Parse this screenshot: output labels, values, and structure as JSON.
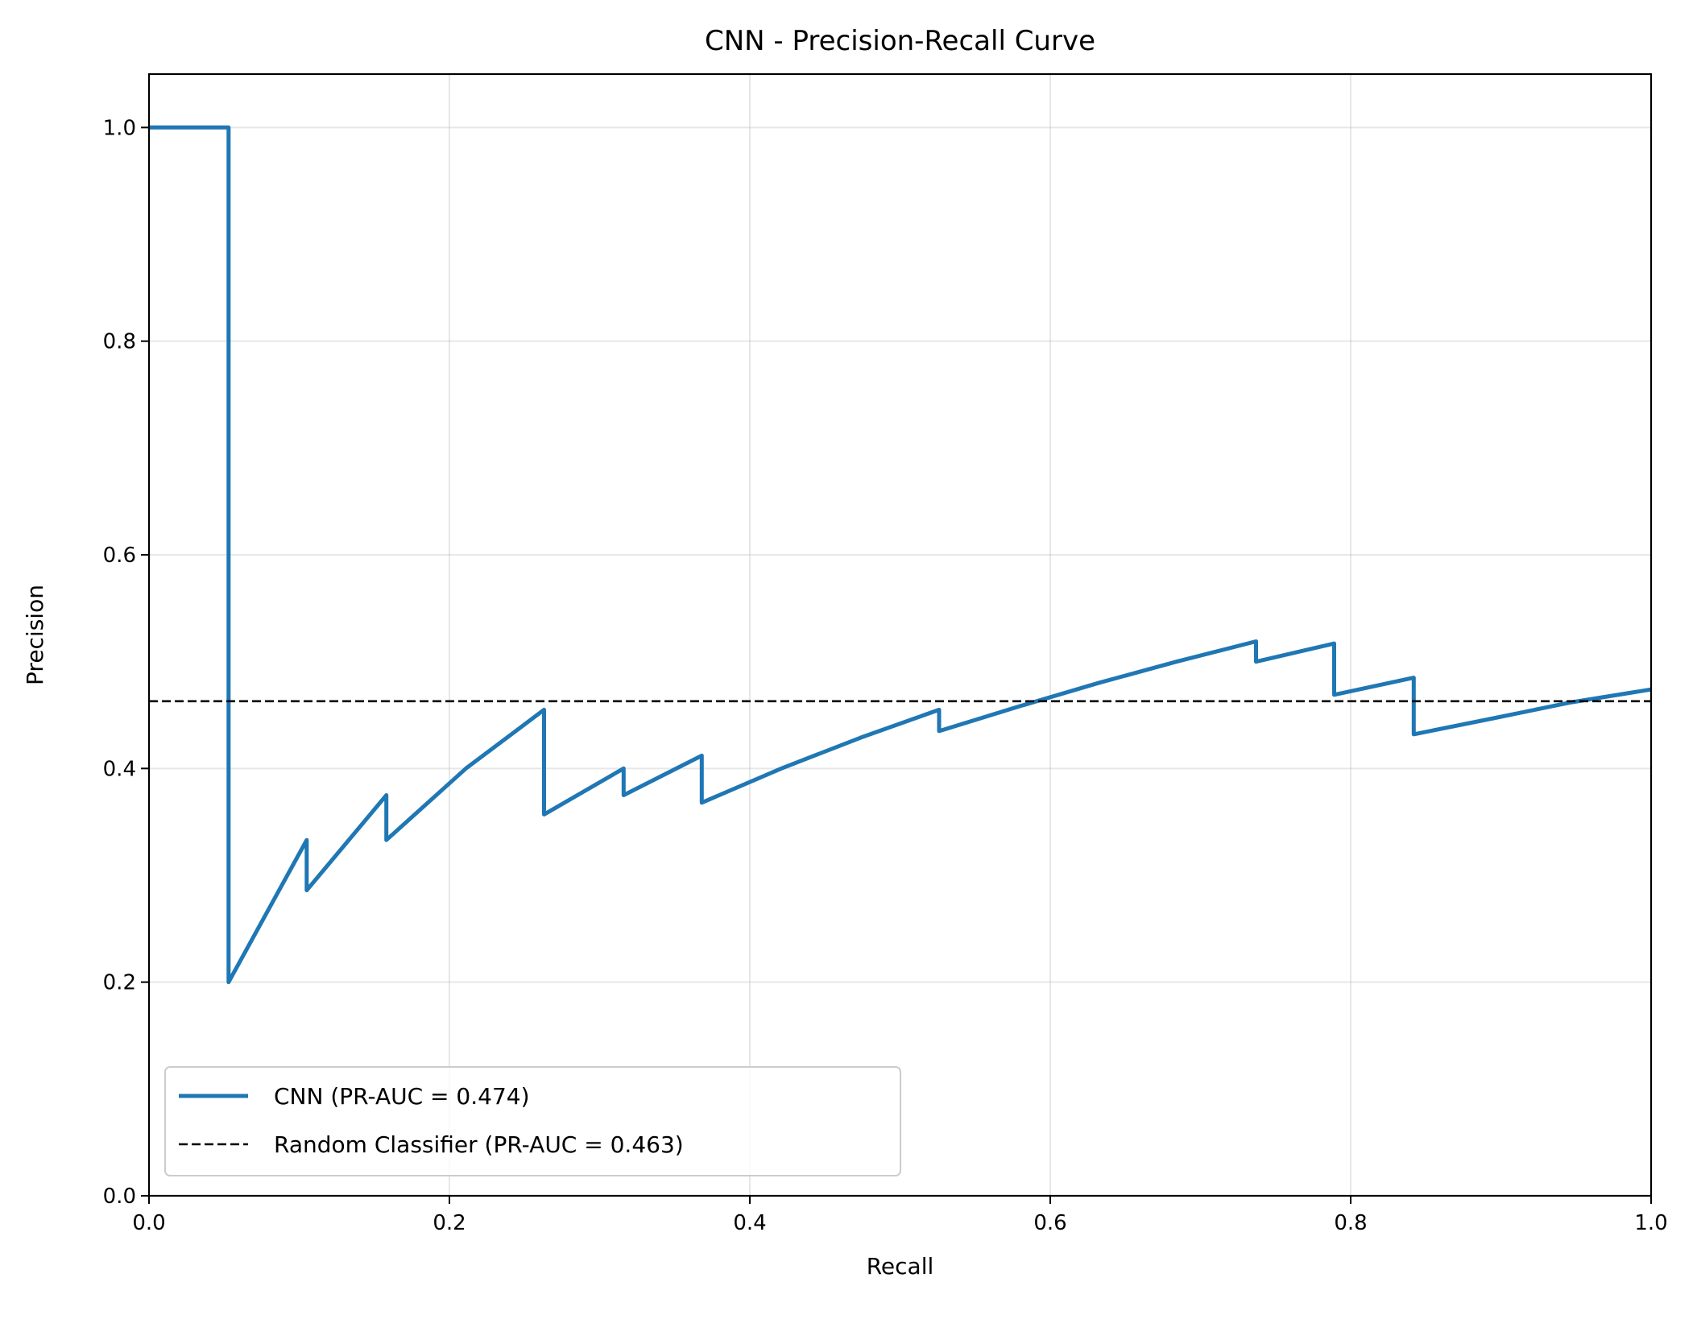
{
  "chart_data": {
    "type": "line",
    "title": "CNN - Precision-Recall Curve",
    "xlabel": "Recall",
    "ylabel": "Precision",
    "xlim": [
      0.0,
      1.0
    ],
    "ylim": [
      0.0,
      1.05
    ],
    "xticks": [
      "0.0",
      "0.2",
      "0.4",
      "0.6",
      "0.8",
      "1.0"
    ],
    "yticks": [
      "0.0",
      "0.2",
      "0.4",
      "0.6",
      "0.8",
      "1.0"
    ],
    "grid": true,
    "legend_position": "lower-left",
    "series": [
      {
        "name": "CNN (PR-AUC = 0.474)",
        "color": "#1f77b4",
        "style": "solid",
        "x": [
          0.0,
          0.053,
          0.053,
          0.105,
          0.105,
          0.158,
          0.158,
          0.211,
          0.263,
          0.263,
          0.316,
          0.316,
          0.368,
          0.368,
          0.421,
          0.474,
          0.526,
          0.526,
          0.579,
          0.632,
          0.684,
          0.737,
          0.737,
          0.789,
          0.789,
          0.842,
          0.842,
          0.895,
          0.947,
          1.0
        ],
        "y": [
          1.0,
          1.0,
          0.2,
          0.333,
          0.286,
          0.375,
          0.333,
          0.4,
          0.455,
          0.357,
          0.4,
          0.375,
          0.412,
          0.368,
          0.4,
          0.429,
          0.455,
          0.435,
          0.458,
          0.48,
          0.5,
          0.519,
          0.5,
          0.517,
          0.469,
          0.485,
          0.432,
          0.447,
          0.462,
          0.474
        ]
      },
      {
        "name": "Random Classifier (PR-AUC = 0.463)",
        "color": "#000000",
        "style": "dashed",
        "x": [
          0.0,
          1.0
        ],
        "y": [
          0.463,
          0.463
        ]
      }
    ]
  }
}
